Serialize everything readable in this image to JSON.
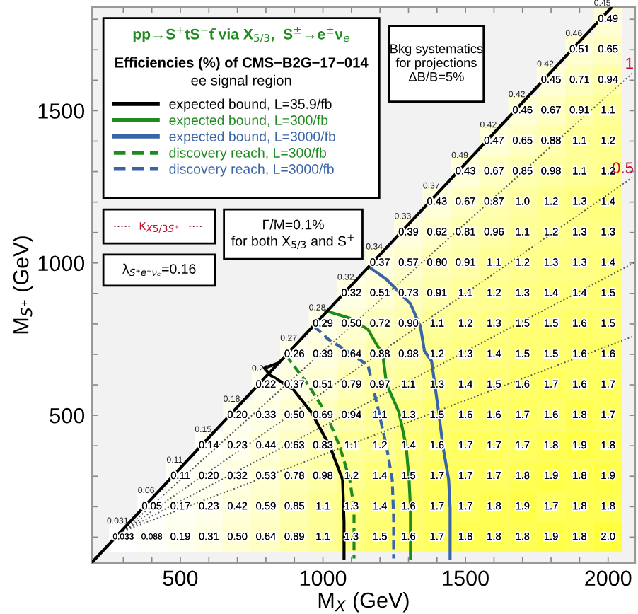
{
  "chart_data": {
    "type": "heatmap",
    "title": "pp→S$^{+}$tS$^{−}$t̄ via X$_{5/3}$,  S$^{±}$→e$^{±}$ν$_{e}$",
    "subtitle": "Efficiencies (%) of CMS−B2G−17−014",
    "xlabel": "M$_{X}$ (GeV)",
    "ylabel": "M$_{S⁺}$ (GeV)",
    "color": "#ffff40",
    "x": [
      300,
      400,
      500,
      600,
      700,
      800,
      900,
      1000,
      1100,
      1200,
      1300,
      1400,
      1500,
      1600,
      1700,
      1800,
      1900,
      2000
    ],
    "y": [
      1800,
      1700,
      1600,
      1500,
      1400,
      1300,
      1200,
      1100,
      1000,
      900,
      800,
      700,
      600,
      500,
      400,
      300,
      200,
      100
    ],
    "cells": [
      [
        null,
        null,
        null,
        null,
        null,
        null,
        null,
        null,
        null,
        null,
        null,
        null,
        null,
        null,
        null,
        null,
        null,
        0.49
      ],
      [
        null,
        null,
        null,
        null,
        null,
        null,
        null,
        null,
        null,
        null,
        null,
        null,
        null,
        null,
        null,
        null,
        0.51,
        0.65
      ],
      [
        null,
        null,
        null,
        null,
        null,
        null,
        null,
        null,
        null,
        null,
        null,
        null,
        null,
        null,
        null,
        0.45,
        0.71,
        0.94
      ],
      [
        null,
        null,
        null,
        null,
        null,
        null,
        null,
        null,
        null,
        null,
        null,
        null,
        null,
        null,
        0.46,
        0.67,
        0.91,
        1.1
      ],
      [
        null,
        null,
        null,
        null,
        null,
        null,
        null,
        null,
        null,
        null,
        null,
        null,
        null,
        0.47,
        0.65,
        0.88,
        1.1,
        1.2
      ],
      [
        null,
        null,
        null,
        null,
        null,
        null,
        null,
        null,
        null,
        null,
        null,
        null,
        0.43,
        0.67,
        0.85,
        0.98,
        1.1,
        1.2
      ],
      [
        null,
        null,
        null,
        null,
        null,
        null,
        null,
        null,
        null,
        null,
        null,
        0.43,
        0.67,
        0.87,
        1.0,
        1.2,
        1.3,
        1.4
      ],
      [
        null,
        null,
        null,
        null,
        null,
        null,
        null,
        null,
        null,
        null,
        0.39,
        0.62,
        0.81,
        0.96,
        1.1,
        1.2,
        1.3,
        1.3
      ],
      [
        null,
        null,
        null,
        null,
        null,
        null,
        null,
        null,
        null,
        0.37,
        0.57,
        0.8,
        0.91,
        1.1,
        1.2,
        1.3,
        1.3,
        1.4
      ],
      [
        null,
        null,
        null,
        null,
        null,
        null,
        null,
        null,
        0.32,
        0.51,
        0.73,
        0.91,
        1.1,
        1.2,
        1.3,
        1.4,
        1.4,
        1.5
      ],
      [
        null,
        null,
        null,
        null,
        null,
        null,
        null,
        0.29,
        0.5,
        0.72,
        0.9,
        1.1,
        1.2,
        1.3,
        1.5,
        1.5,
        1.6,
        1.5
      ],
      [
        null,
        null,
        null,
        null,
        null,
        null,
        0.26,
        0.39,
        0.64,
        0.88,
        0.98,
        1.2,
        1.3,
        1.4,
        1.5,
        1.5,
        1.6,
        1.6
      ],
      [
        null,
        null,
        null,
        null,
        null,
        0.22,
        0.37,
        0.51,
        0.79,
        0.97,
        1.1,
        1.3,
        1.4,
        1.5,
        1.6,
        1.7,
        1.6,
        1.7
      ],
      [
        null,
        null,
        null,
        null,
        0.2,
        0.33,
        0.5,
        0.69,
        0.94,
        1.1,
        1.3,
        1.5,
        1.6,
        1.6,
        1.7,
        1.6,
        1.8,
        1.7
      ],
      [
        null,
        null,
        null,
        0.14,
        0.23,
        0.44,
        0.63,
        0.83,
        1.1,
        1.2,
        1.4,
        1.6,
        1.7,
        1.7,
        1.7,
        1.8,
        1.9,
        1.8
      ],
      [
        null,
        null,
        0.11,
        0.2,
        0.32,
        0.53,
        0.78,
        0.98,
        1.2,
        1.4,
        1.5,
        1.7,
        1.7,
        1.7,
        1.8,
        1.9,
        1.8,
        1.9
      ],
      [
        null,
        0.05,
        0.17,
        0.23,
        0.42,
        0.59,
        0.85,
        1.1,
        1.3,
        1.4,
        1.6,
        1.7,
        1.7,
        1.8,
        1.9,
        1.7,
        1.8,
        1.8
      ],
      [
        0.033,
        0.088,
        0.19,
        0.31,
        0.5,
        0.64,
        0.89,
        1.1,
        1.3,
        1.5,
        1.6,
        1.7,
        1.8,
        1.8,
        1.8,
        1.9,
        1.8,
        2.0
      ]
    ],
    "cell_labels": [
      [
        null,
        null,
        null,
        null,
        null,
        null,
        null,
        null,
        null,
        null,
        null,
        null,
        null,
        null,
        null,
        null,
        null,
        "0.49"
      ],
      [
        null,
        null,
        null,
        null,
        null,
        null,
        null,
        null,
        null,
        null,
        null,
        null,
        null,
        null,
        null,
        null,
        "0.51",
        "0.65"
      ],
      [
        null,
        null,
        null,
        null,
        null,
        null,
        null,
        null,
        null,
        null,
        null,
        null,
        null,
        null,
        null,
        "0.45",
        "0.71",
        "0.94"
      ],
      [
        null,
        null,
        null,
        null,
        null,
        null,
        null,
        null,
        null,
        null,
        null,
        null,
        null,
        null,
        "0.46",
        "0.67",
        "0.91",
        "1.1"
      ],
      [
        null,
        null,
        null,
        null,
        null,
        null,
        null,
        null,
        null,
        null,
        null,
        null,
        null,
        "0.47",
        "0.65",
        "0.88",
        "1.1",
        "1.2"
      ],
      [
        null,
        null,
        null,
        null,
        null,
        null,
        null,
        null,
        null,
        null,
        null,
        null,
        "0.43",
        "0.67",
        "0.85",
        "0.98",
        "1.1",
        "1.2"
      ],
      [
        null,
        null,
        null,
        null,
        null,
        null,
        null,
        null,
        null,
        null,
        null,
        "0.43",
        "0.67",
        "0.87",
        "1.0",
        "1.2",
        "1.3",
        "1.4"
      ],
      [
        null,
        null,
        null,
        null,
        null,
        null,
        null,
        null,
        null,
        null,
        "0.39",
        "0.62",
        "0.81",
        "0.96",
        "1.1",
        "1.2",
        "1.3",
        "1.3"
      ],
      [
        null,
        null,
        null,
        null,
        null,
        null,
        null,
        null,
        null,
        "0.37",
        "0.57",
        "0.80",
        "0.91",
        "1.1",
        "1.2",
        "1.3",
        "1.3",
        "1.4"
      ],
      [
        null,
        null,
        null,
        null,
        null,
        null,
        null,
        null,
        "0.32",
        "0.51",
        "0.73",
        "0.91",
        "1.1",
        "1.2",
        "1.3",
        "1.4",
        "1.4",
        "1.5"
      ],
      [
        null,
        null,
        null,
        null,
        null,
        null,
        null,
        "0.29",
        "0.50",
        "0.72",
        "0.90",
        "1.1",
        "1.2",
        "1.3",
        "1.5",
        "1.5",
        "1.6",
        "1.5"
      ],
      [
        null,
        null,
        null,
        null,
        null,
        null,
        "0.26",
        "0.39",
        "0.64",
        "0.88",
        "0.98",
        "1.2",
        "1.3",
        "1.4",
        "1.5",
        "1.5",
        "1.6",
        "1.6"
      ],
      [
        null,
        null,
        null,
        null,
        null,
        "0.22",
        "0.37",
        "0.51",
        "0.79",
        "0.97",
        "1.1",
        "1.3",
        "1.4",
        "1.5",
        "1.6",
        "1.7",
        "1.6",
        "1.7"
      ],
      [
        null,
        null,
        null,
        null,
        "0.20",
        "0.33",
        "0.50",
        "0.69",
        "0.94",
        "1.1",
        "1.3",
        "1.5",
        "1.6",
        "1.6",
        "1.7",
        "1.6",
        "1.8",
        "1.7"
      ],
      [
        null,
        null,
        null,
        "0.14",
        "0.23",
        "0.44",
        "0.63",
        "0.83",
        "1.1",
        "1.2",
        "1.4",
        "1.6",
        "1.7",
        "1.7",
        "1.7",
        "1.8",
        "1.9",
        "1.8"
      ],
      [
        null,
        null,
        "0.11",
        "0.20",
        "0.32",
        "0.53",
        "0.78",
        "0.98",
        "1.2",
        "1.4",
        "1.5",
        "1.7",
        "1.7",
        "1.7",
        "1.8",
        "1.9",
        "1.8",
        "1.9"
      ],
      [
        null,
        "0.05",
        "0.17",
        "0.23",
        "0.42",
        "0.59",
        "0.85",
        "1.1",
        "1.3",
        "1.4",
        "1.6",
        "1.7",
        "1.7",
        "1.8",
        "1.9",
        "1.7",
        "1.8",
        "1.8"
      ],
      [
        "0.033",
        "0.088",
        "0.19",
        "0.31",
        "0.50",
        "0.64",
        "0.89",
        "1.1",
        "1.3",
        "1.5",
        "1.6",
        "1.7",
        "1.8",
        "1.8",
        "1.8",
        "1.9",
        "1.8",
        "2.0"
      ]
    ],
    "series": [
      {
        "type": "line",
        "name": "expected bound, L=35.9/fb",
        "color": "#000000",
        "line_style": "solid",
        "x": [
          845,
          795,
          815,
          896,
          960,
          1025,
          1069,
          1074,
          1074
        ],
        "values": [
          672,
          655,
          632,
          585,
          509,
          397,
          289,
          148,
          30
        ]
      },
      {
        "type": "line",
        "name": "expected bound, L=300/fb",
        "color": "#1f8a1f",
        "line_style": "solid",
        "x": [
          1010,
          1094,
          1158,
          1193,
          1208,
          1223,
          1267,
          1292,
          1302,
          1307,
          1307
        ],
        "values": [
          843,
          819,
          782,
          725,
          711,
          603,
          509,
          397,
          289,
          195,
          30
        ]
      },
      {
        "type": "line",
        "name": "expected bound, L=3000/fb",
        "color": "#3a64a8",
        "line_style": "solid",
        "x": [
          1168,
          1223,
          1307,
          1342,
          1356,
          1381,
          1406,
          1421,
          1441,
          1446,
          1446
        ],
        "values": [
          983,
          946,
          866,
          791,
          711,
          678,
          509,
          397,
          289,
          195,
          30
        ]
      },
      {
        "type": "line",
        "name": "discovery reach, L=300/fb",
        "color": "#1f8a1f",
        "line_style": "dashed",
        "x": [
          871,
          946,
          1010,
          1059,
          1094,
          1109,
          1109
        ],
        "values": [
          697,
          603,
          509,
          397,
          289,
          195,
          30
        ]
      },
      {
        "type": "line",
        "name": "discovery reach, L=3000/fb",
        "color": "#3a64a8",
        "line_style": "dashed",
        "x": [
          970,
          1020,
          1084,
          1158,
          1193,
          1223,
          1243,
          1248,
          1248
        ],
        "values": [
          791,
          749,
          711,
          664,
          523,
          397,
          289,
          162,
          30
        ]
      },
      {
        "type": "line",
        "color": "#000000",
        "line_style": "solid",
        "x": [
          190,
          2010
        ],
        "values": [
          17,
          1837
        ]
      },
      {
        "type": "line",
        "name": "1",
        "color": "#555555",
        "line_style": "dotted",
        "x": [
          300,
          2090
        ],
        "values": [
          120,
          1627
        ]
      },
      {
        "type": "line",
        "name": "0.5",
        "color": "#555555",
        "line_style": "dotted",
        "x": [
          300,
          2090
        ],
        "values": [
          120,
          1284
        ]
      },
      {
        "type": "line",
        "color": "#555555",
        "line_style": "dotted",
        "x": [
          300,
          2090
        ],
        "values": [
          120,
          1000
        ]
      },
      {
        "type": "line",
        "color": "#555555",
        "line_style": "dotted",
        "x": [
          300,
          2090
        ],
        "values": [
          120,
          760
        ]
      }
    ],
    "annotations": [
      "ee signal region",
      "Bkg systematics\nfor projections\nΔB/B=5%",
      "κ$_{X5/3S⁺}$",
      "Γ/M=0.1%\nfor both X$_{5/3}$ and S$^{+}$",
      "λ$_{S⁺e⁺νₑ}$=0.16",
      {
        "text": "0.45",
        "x": 2000,
        "y": 1800
      },
      {
        "text": "0.46",
        "x": 1900,
        "y": 1700
      },
      {
        "text": "0.42",
        "x": 1800,
        "y": 1600
      },
      {
        "text": "0.42",
        "x": 1700,
        "y": 1500
      },
      {
        "text": "0.42",
        "x": 1600,
        "y": 1400
      },
      {
        "text": "0.49",
        "x": 1500,
        "y": 1300
      },
      {
        "text": "0.37",
        "x": 1400,
        "y": 1200
      },
      {
        "text": "0.33",
        "x": 1300,
        "y": 1100
      },
      {
        "text": "0.34",
        "x": 1200,
        "y": 1000
      },
      {
        "text": "0.32",
        "x": 1100,
        "y": 900
      },
      {
        "text": "0.28",
        "x": 1000,
        "y": 800
      },
      {
        "text": "0.27",
        "x": 900,
        "y": 700
      },
      {
        "text": "0.22",
        "x": 800,
        "y": 600
      },
      {
        "text": "0.18",
        "x": 700,
        "y": 500
      },
      {
        "text": "0.15",
        "x": 600,
        "y": 400
      },
      {
        "text": "0.11",
        "x": 500,
        "y": 300
      },
      {
        "text": "0.06",
        "x": 400,
        "y": 200
      },
      {
        "text": "0.031",
        "x": 300,
        "y": 100
      }
    ],
    "xlim": [
      190,
      2095
    ],
    "ylim": [
      15,
      1840
    ],
    "xticks": [
      {
        "value": 300,
        "label": null
      },
      {
        "value": 400,
        "label": null
      },
      500,
      {
        "value": 600,
        "label": null
      },
      {
        "value": 700,
        "label": null
      },
      {
        "value": 800,
        "label": null
      },
      {
        "value": 900,
        "label": null
      },
      1000,
      {
        "value": 1100,
        "label": null
      },
      {
        "value": 1200,
        "label": null
      },
      {
        "value": 1300,
        "label": null
      },
      {
        "value": 1400,
        "label": null
      },
      1500,
      {
        "value": 1600,
        "label": null
      },
      {
        "value": 1700,
        "label": null
      },
      {
        "value": 1800,
        "label": null
      },
      {
        "value": 1900,
        "label": null
      },
      2000
    ],
    "yticks": [
      {
        "value": 100,
        "label": null
      },
      {
        "value": 200,
        "label": null
      },
      {
        "value": 300,
        "label": null
      },
      {
        "value": 400,
        "label": null
      },
      500,
      {
        "value": 600,
        "label": null
      },
      {
        "value": 700,
        "label": null
      },
      {
        "value": 800,
        "label": null
      },
      {
        "value": 900,
        "label": null
      },
      1000,
      {
        "value": 1100,
        "label": null
      },
      {
        "value": 1200,
        "label": null
      },
      {
        "value": 1300,
        "label": null
      },
      {
        "value": 1400,
        "label": null
      },
      1500,
      {
        "value": 1600,
        "label": null
      },
      {
        "value": 1700,
        "label": null
      },
      {
        "value": 1800,
        "label": null
      }
    ],
    "legend": "top left",
    "grid": false
  }
}
